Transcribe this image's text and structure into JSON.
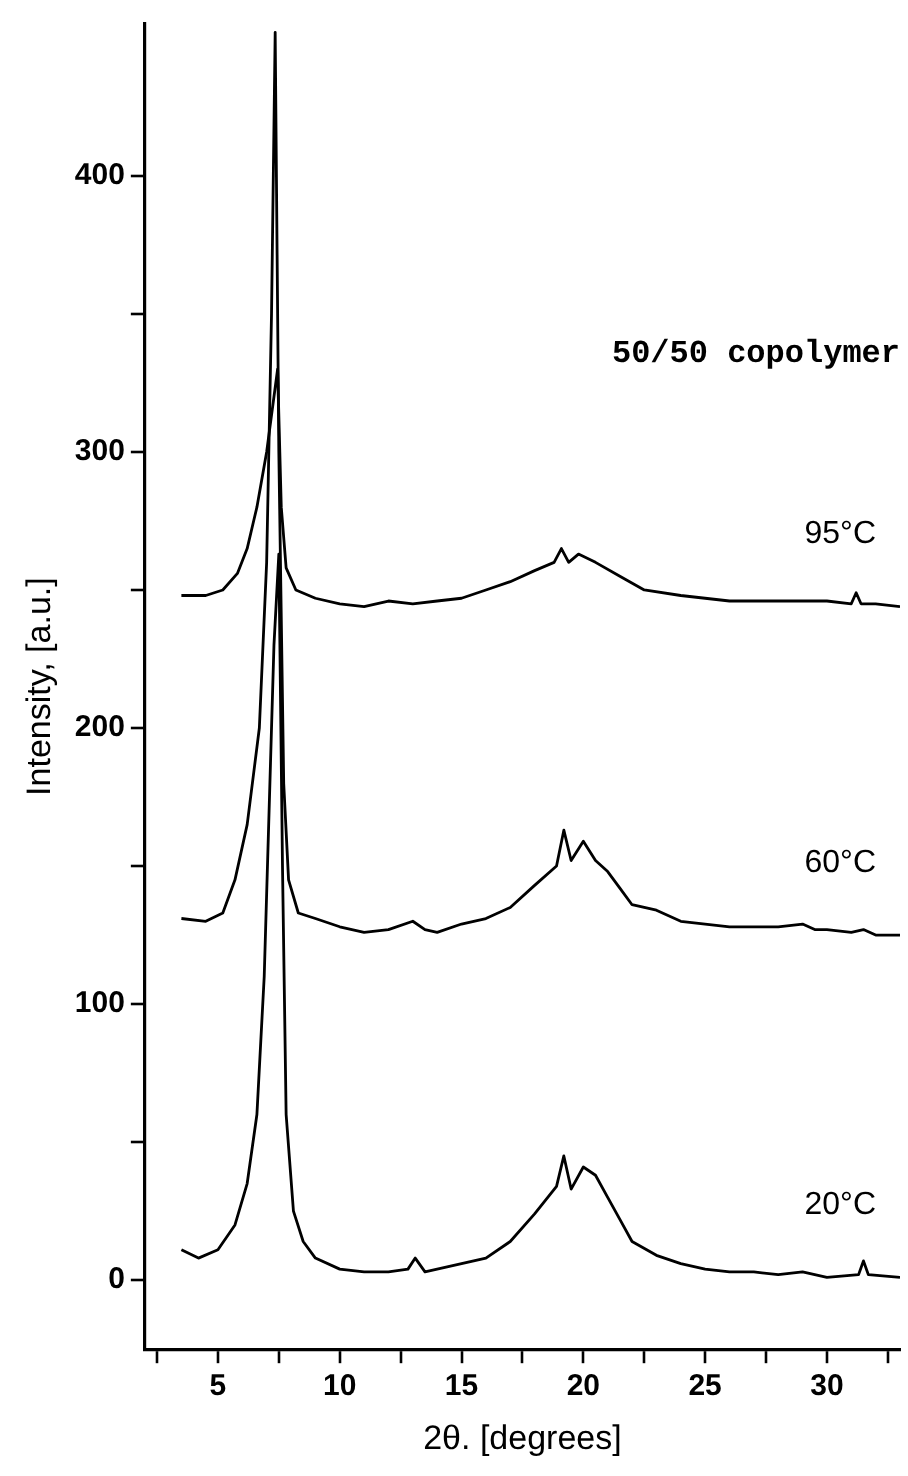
{
  "chart_data": {
    "type": "line",
    "xlabel": "2θ. [degrees]",
    "ylabel": "Intensity, [a.u.]",
    "annotations": [
      "50/50 copolymer"
    ],
    "xlim": [
      2,
      33
    ],
    "ylim": [
      -25,
      455
    ],
    "xticks": [
      {
        "value": 2.5,
        "label": null
      },
      5,
      {
        "value": 7.5,
        "label": null
      },
      10,
      {
        "value": 12.5,
        "label": null
      },
      15,
      {
        "value": 17.5,
        "label": null
      },
      20,
      {
        "value": 22.5,
        "label": null
      },
      25,
      {
        "value": 27.5,
        "label": null
      },
      30,
      {
        "value": 32.5,
        "label": null
      }
    ],
    "yticks": [
      0,
      {
        "value": 50,
        "label": null
      },
      100,
      {
        "value": 150,
        "label": null
      },
      200,
      {
        "value": 250,
        "label": null
      },
      300,
      {
        "value": 350,
        "label": null
      },
      400
    ],
    "grid": false,
    "legend": false,
    "marker": "none",
    "line_style": "solid",
    "series": [
      {
        "name": "95°C",
        "color": "#000000",
        "x": [
          3.5,
          4.5,
          5.2,
          5.8,
          6.2,
          6.6,
          7.0,
          7.3,
          7.45,
          7.6,
          7.8,
          8.2,
          9,
          10,
          11,
          12,
          13,
          14,
          15,
          16,
          17,
          18,
          18.8,
          19.1,
          19.4,
          19.8,
          20.5,
          21.5,
          22.5,
          24,
          26,
          28,
          30,
          31,
          31.2,
          31.4,
          32,
          33
        ],
        "values": [
          248,
          248,
          250,
          256,
          265,
          280,
          300,
          320,
          330,
          280,
          258,
          250,
          247,
          245,
          244,
          246,
          245,
          246,
          247,
          250,
          253,
          257,
          260,
          265,
          260,
          263,
          260,
          255,
          250,
          248,
          246,
          246,
          246,
          245,
          249,
          245,
          245,
          244
        ]
      },
      {
        "name": "60°C",
        "color": "#000000",
        "x": [
          3.5,
          4.5,
          5.2,
          5.7,
          6.2,
          6.7,
          7.0,
          7.2,
          7.35,
          7.5,
          7.7,
          7.9,
          8.3,
          9,
          10,
          11,
          12,
          13,
          13.5,
          14,
          15,
          16,
          17,
          18,
          18.9,
          19.2,
          19.5,
          20,
          20.5,
          21,
          21.5,
          22,
          23,
          24,
          25,
          26,
          27,
          28,
          29,
          29.5,
          30,
          31,
          31.5,
          32,
          33
        ],
        "values": [
          131,
          130,
          133,
          145,
          165,
          200,
          260,
          350,
          452,
          300,
          180,
          145,
          133,
          131,
          128,
          126,
          127,
          130,
          127,
          126,
          129,
          131,
          135,
          143,
          150,
          163,
          152,
          159,
          152,
          148,
          142,
          136,
          134,
          130,
          129,
          128,
          128,
          128,
          129,
          127,
          127,
          126,
          127,
          125,
          125
        ]
      },
      {
        "name": "20°C",
        "color": "#000000",
        "x": [
          3.5,
          4.2,
          5,
          5.7,
          6.2,
          6.6,
          6.9,
          7.1,
          7.3,
          7.5,
          7.65,
          7.8,
          8.1,
          8.5,
          9,
          10,
          11,
          12,
          12.8,
          13.1,
          13.5,
          14,
          15,
          16,
          17,
          18,
          18.9,
          19.2,
          19.5,
          20,
          20.5,
          21,
          21.5,
          22,
          23,
          24,
          25,
          26,
          27,
          28,
          29,
          30,
          31.3,
          31.5,
          31.7,
          33
        ],
        "values": [
          11,
          8,
          11,
          20,
          35,
          60,
          110,
          170,
          230,
          263,
          150,
          60,
          25,
          14,
          8,
          4,
          3,
          3,
          4,
          8,
          3,
          4,
          6,
          8,
          14,
          24,
          34,
          45,
          33,
          41,
          38,
          30,
          22,
          14,
          9,
          6,
          4,
          3,
          3,
          2,
          3,
          1,
          2,
          7,
          2,
          1
        ]
      }
    ]
  }
}
